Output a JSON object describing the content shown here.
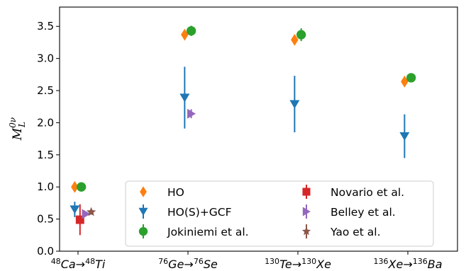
{
  "chart_data": {
    "type": "scatter",
    "ylabel": {
      "base": "M",
      "sub": "L",
      "sup": "0ν"
    },
    "ylim": [
      0.0,
      3.8
    ],
    "yticks": [
      "0.0",
      "0.5",
      "1.0",
      "1.5",
      "2.0",
      "2.5",
      "3.0",
      "3.5"
    ],
    "categories": [
      {
        "pre_sup": "48",
        "from": "Ca",
        "arrow": "→",
        "post_sup": "48",
        "to": "Ti"
      },
      {
        "pre_sup": "76",
        "from": "Ge",
        "arrow": "→",
        "post_sup": "76",
        "to": "Se"
      },
      {
        "pre_sup": "130",
        "from": "Te",
        "arrow": "→",
        "post_sup": "130",
        "to": "Xe"
      },
      {
        "pre_sup": "136",
        "from": "Xe",
        "arrow": "→",
        "post_sup": "136",
        "to": "Ba"
      }
    ],
    "series": [
      {
        "name": "HO",
        "marker": "diamond",
        "color": "#ff7f0e",
        "points": [
          {
            "cat": 0,
            "offset": -0.05,
            "y": 1.0,
            "err": 0.0
          },
          {
            "cat": 1,
            "offset": -0.05,
            "y": 3.37,
            "err": 0.0
          },
          {
            "cat": 2,
            "offset": -0.05,
            "y": 3.29,
            "err": 0.0
          },
          {
            "cat": 3,
            "offset": -0.05,
            "y": 2.64,
            "err": 0.0
          }
        ]
      },
      {
        "name": "HO(S)+GCF",
        "marker": "triangle-down",
        "color": "#1f77b4",
        "points": [
          {
            "cat": 0,
            "offset": -0.05,
            "y": 0.65,
            "err": 0.12
          },
          {
            "cat": 1,
            "offset": -0.05,
            "y": 2.39,
            "err": 0.48
          },
          {
            "cat": 2,
            "offset": -0.05,
            "y": 2.29,
            "err": 0.44
          },
          {
            "cat": 3,
            "offset": -0.05,
            "y": 1.79,
            "err": 0.34
          }
        ]
      },
      {
        "name": "Jokiniemi et al.",
        "marker": "circle",
        "color": "#2ca02c",
        "points": [
          {
            "cat": 0,
            "offset": 0.05,
            "y": 1.0,
            "err": 0.02
          },
          {
            "cat": 1,
            "offset": 0.05,
            "y": 3.43,
            "err": 0.08
          },
          {
            "cat": 2,
            "offset": 0.05,
            "y": 3.37,
            "err": 0.1
          },
          {
            "cat": 3,
            "offset": 0.05,
            "y": 2.7,
            "err": 0.07
          }
        ]
      },
      {
        "name": "Novario et al.",
        "marker": "square",
        "color": "#d62728",
        "points": [
          {
            "cat": 0,
            "offset": 0.03,
            "y": 0.49,
            "err": 0.24
          }
        ]
      },
      {
        "name": "Belley et al.",
        "marker": "triangle-right",
        "color": "#9467bd",
        "points": [
          {
            "cat": 0,
            "offset": 0.12,
            "y": 0.58,
            "err": 0.0
          },
          {
            "cat": 1,
            "offset": 0.05,
            "y": 2.14,
            "err": 0.07
          }
        ]
      },
      {
        "name": "Yao et al.",
        "marker": "star",
        "color": "#8c564b",
        "points": [
          {
            "cat": 0,
            "offset": 0.2,
            "y": 0.61,
            "err": 0.04
          }
        ]
      }
    ],
    "legend": {
      "position": "lower-right",
      "columns": 2
    }
  }
}
